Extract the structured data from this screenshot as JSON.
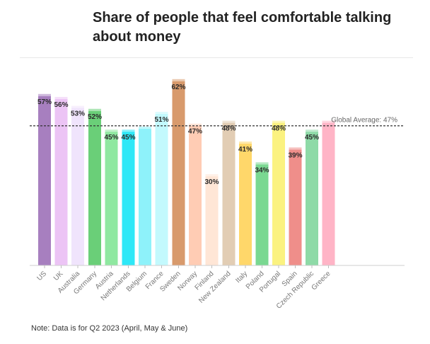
{
  "title": "Share of people that feel comfortable talking about money",
  "note": "Note: Data is for Q2 2023 (April, May & June)",
  "chart_data": {
    "type": "bar",
    "title": "Share of people that feel comfortable talking about money",
    "xlabel": "",
    "ylabel": "",
    "ylim": [
      0,
      66
    ],
    "grid": false,
    "legend": "none",
    "reference_line": {
      "label": "Global Average: 47%",
      "value": 47
    },
    "groups": [
      [
        "US",
        "UK",
        "Australia"
      ],
      [
        "Germany",
        "Austria"
      ],
      [
        "Netherlands",
        "Belgium",
        "France"
      ],
      [
        "Sweden",
        "Norway",
        "Finland"
      ],
      [
        "New Zealand",
        "Italy",
        "Poland",
        "Portugal",
        "Spain",
        "Czech Republic",
        "Greece"
      ]
    ],
    "categories": [
      "US",
      "UK",
      "Australia",
      "Germany",
      "Austria",
      "Netherlands",
      "Belgium",
      "France",
      "Sweden",
      "Norway",
      "Finland",
      "New Zealand",
      "Italy",
      "Poland",
      "Portugal",
      "Spain",
      "Czech Republic",
      "Greece"
    ],
    "values": [
      57,
      56,
      53,
      52,
      45,
      45,
      46,
      51,
      62,
      47,
      30,
      48,
      41,
      34,
      48,
      39,
      45,
      48
    ],
    "data_labels": [
      "57%",
      "56%",
      "53%",
      "52%",
      "45%",
      "45%",
      "",
      "51%",
      "62%",
      "47%",
      "30%",
      "48%",
      "41%",
      "34%",
      "48%",
      "39%",
      "45%",
      ""
    ],
    "colors": [
      "#a77fbf",
      "#ecc4f5",
      "#f0e4fc",
      "#6acf78",
      "#8fe8a0",
      "#2ee8f7",
      "#8ef2fa",
      "#c3f9fd",
      "#d89a6c",
      "#ffccb4",
      "#ffe6d6",
      "#e2cdb4",
      "#ffd76a",
      "#7ad891",
      "#fbf280",
      "#ef8e8a",
      "#8edaa7",
      "#ffb4c6"
    ]
  }
}
